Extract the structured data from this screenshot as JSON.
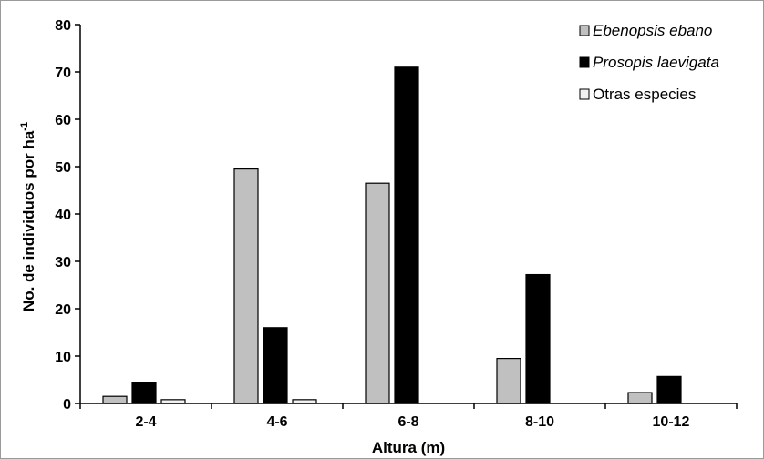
{
  "chart_data": {
    "type": "bar",
    "title": "",
    "xlabel": "Altura (m)",
    "ylabel": "No. de individuos por ha",
    "ylabel_superscript": "-1",
    "categories": [
      "2-4",
      "4-6",
      "6-8",
      "8-10",
      "10-12"
    ],
    "ylim": [
      0,
      80
    ],
    "yticks": [
      0,
      10,
      20,
      30,
      40,
      50,
      60,
      70,
      80
    ],
    "grid": false,
    "legend_position": "top-right",
    "series": [
      {
        "name": "Ebenopsis ebano",
        "italic": true,
        "color": "#c0c0c0",
        "values": [
          1.5,
          49.5,
          46.5,
          9.5,
          2.3
        ]
      },
      {
        "name": "Prosopis laevigata",
        "italic": true,
        "color": "#000000",
        "values": [
          4.5,
          16,
          71,
          27.2,
          5.7
        ]
      },
      {
        "name": "Otras especies",
        "italic": false,
        "color": "#f2f2f2",
        "values": [
          0.8,
          0.8,
          0,
          0,
          0
        ]
      }
    ]
  }
}
